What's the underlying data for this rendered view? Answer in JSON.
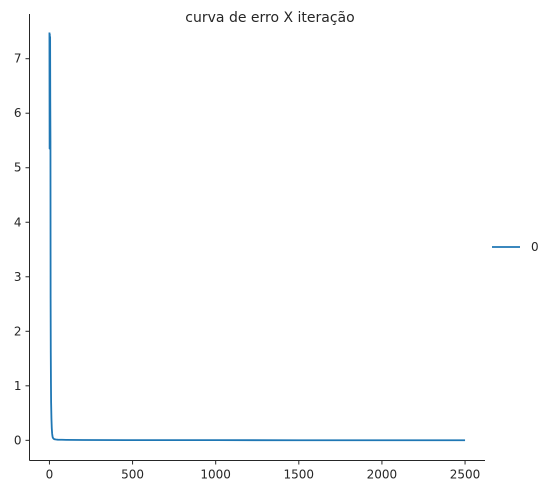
{
  "chart_data": {
    "type": "line",
    "title": "curva de erro X iteração",
    "xlabel": "",
    "ylabel": "",
    "xlim": [
      -120,
      2620
    ],
    "ylim": [
      -0.37,
      7.82
    ],
    "xticks": [
      0,
      500,
      1000,
      1500,
      2000,
      2500
    ],
    "yticks": [
      0,
      1,
      2,
      3,
      4,
      5,
      6,
      7
    ],
    "grid": false,
    "legend_position": "right",
    "series": [
      {
        "name": "0",
        "color": "#1f77b4",
        "x": [
          0,
          1,
          2,
          3,
          4,
          5,
          6,
          7,
          8,
          9,
          10,
          12,
          14,
          16,
          18,
          20,
          25,
          30,
          40,
          50,
          75,
          100,
          200,
          500,
          1000,
          1500,
          2000,
          2500
        ],
        "y": [
          7.48,
          5.35,
          7.45,
          5.4,
          7.4,
          6.2,
          5.5,
          2.6,
          1.6,
          1.05,
          0.7,
          0.4,
          0.22,
          0.13,
          0.08,
          0.05,
          0.03,
          0.02,
          0.015,
          0.012,
          0.01,
          0.008,
          0.006,
          0.004,
          0.003,
          0.002,
          0.002,
          0.002
        ]
      }
    ]
  }
}
